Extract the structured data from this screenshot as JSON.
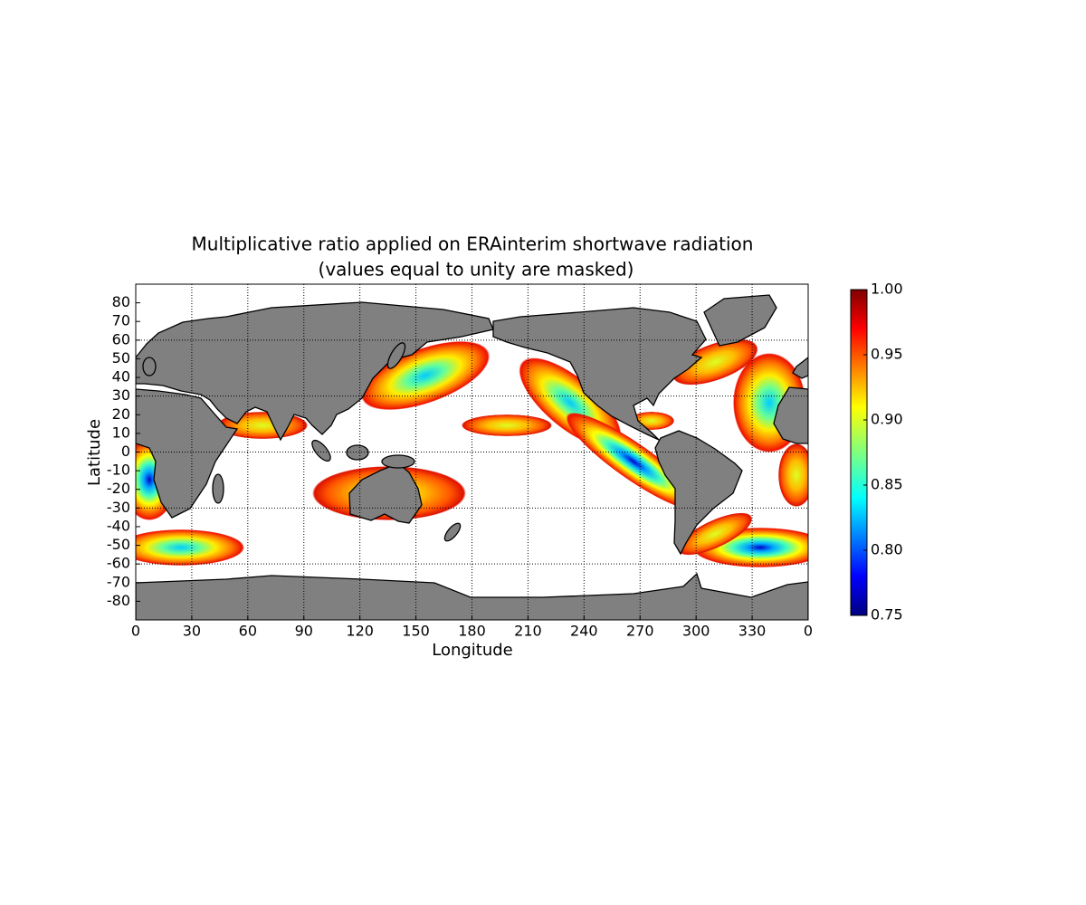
{
  "chart_data": {
    "type": "map",
    "title": "Multiplicative ratio applied on ERAinterim shortwave radiation",
    "subtitle": "(values equal to unity are masked)",
    "xlabel": "Longitude",
    "ylabel": "Latitude",
    "xlim": [
      0,
      360
    ],
    "ylim": [
      -90,
      90
    ],
    "xticks": [
      0,
      30,
      60,
      90,
      120,
      150,
      180,
      210,
      240,
      270,
      300,
      330,
      {
        "value": 360,
        "label": "0"
      }
    ],
    "yticks": [
      -80,
      -70,
      -60,
      -50,
      -40,
      -30,
      -20,
      -10,
      0,
      10,
      20,
      30,
      40,
      50,
      60,
      70,
      80
    ],
    "grid": true,
    "land_color": "#808080",
    "colorbar": {
      "colormap": "jet",
      "clim": [
        0.75,
        1.0
      ],
      "ticks": [
        {
          "value": 0.75,
          "label": "0.75"
        },
        {
          "value": 0.8,
          "label": "0.80"
        },
        {
          "value": 0.85,
          "label": "0.85"
        },
        {
          "value": 0.9,
          "label": "0.90"
        },
        {
          "value": 0.95,
          "label": "0.95"
        },
        {
          "value": 1.0,
          "label": "1.00"
        }
      ]
    }
  }
}
